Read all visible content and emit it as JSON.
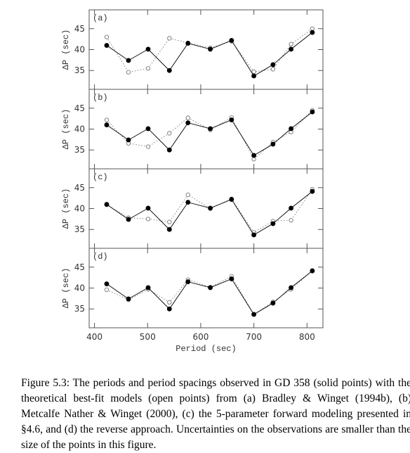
{
  "chart_data": [
    {
      "type": "line",
      "label": "(a)",
      "ylabel": "ΔP (sec)",
      "x": [
        423,
        464,
        501,
        541,
        576,
        618,
        658,
        700,
        736,
        770,
        810
      ],
      "xlim": [
        390,
        830
      ],
      "ylim": [
        30.5,
        49.5
      ],
      "yticks": [
        35,
        40,
        45
      ],
      "series": [
        {
          "color": "#000000",
          "marker": "filled",
          "linestyle": "solid",
          "values": [
            41.0,
            37.4,
            40.1,
            35.0,
            41.5,
            40.1,
            42.2,
            33.7,
            36.4,
            40.1,
            44.1
          ]
        },
        {
          "color": "#777777",
          "marker": "open",
          "linestyle": "dotted",
          "values": [
            43.0,
            34.6,
            35.5,
            42.7,
            41.6,
            40.4,
            42.0,
            34.7,
            35.3,
            41.3,
            45.0
          ]
        }
      ]
    },
    {
      "type": "line",
      "label": "(b)",
      "ylabel": "ΔP (sec)",
      "x": [
        423,
        464,
        501,
        541,
        576,
        618,
        658,
        700,
        736,
        770,
        810
      ],
      "xlim": [
        390,
        830
      ],
      "ylim": [
        30.5,
        49.5
      ],
      "yticks": [
        35,
        40,
        45
      ],
      "series": [
        {
          "color": "#000000",
          "marker": "filled",
          "linestyle": "solid",
          "values": [
            41.0,
            37.4,
            40.1,
            35.0,
            41.5,
            40.1,
            42.2,
            33.7,
            36.4,
            40.1,
            44.1
          ]
        },
        {
          "color": "#777777",
          "marker": "open",
          "linestyle": "dotted",
          "values": [
            42.2,
            36.6,
            35.8,
            39.0,
            42.7,
            39.8,
            42.8,
            32.8,
            36.9,
            39.3,
            44.5
          ]
        }
      ]
    },
    {
      "type": "line",
      "label": "(c)",
      "ylabel": "ΔP (sec)",
      "x": [
        423,
        464,
        501,
        541,
        576,
        618,
        658,
        700,
        736,
        770,
        810
      ],
      "xlim": [
        390,
        830
      ],
      "ylim": [
        30.5,
        49.5
      ],
      "yticks": [
        35,
        40,
        45
      ],
      "series": [
        {
          "color": "#000000",
          "marker": "filled",
          "linestyle": "solid",
          "values": [
            41.0,
            37.4,
            40.1,
            35.0,
            41.5,
            40.1,
            42.2,
            33.7,
            36.4,
            40.1,
            44.1
          ]
        },
        {
          "color": "#777777",
          "marker": "open",
          "linestyle": "dotted",
          "values": [
            40.9,
            37.8,
            37.5,
            36.8,
            43.3,
            40.0,
            42.3,
            34.3,
            37.0,
            37.2,
            44.6
          ]
        }
      ]
    },
    {
      "type": "line",
      "label": "(d)",
      "ylabel": "ΔP (sec)",
      "xlabel": "Period (sec)",
      "x": [
        423,
        464,
        501,
        541,
        576,
        618,
        658,
        700,
        736,
        770,
        810
      ],
      "xlim": [
        390,
        830
      ],
      "xticks": [
        400,
        500,
        600,
        700,
        800
      ],
      "ylim": [
        30.5,
        49.5
      ],
      "yticks": [
        35,
        40,
        45
      ],
      "series": [
        {
          "color": "#000000",
          "marker": "filled",
          "linestyle": "solid",
          "values": [
            41.0,
            37.4,
            40.1,
            35.0,
            41.5,
            40.1,
            42.2,
            33.7,
            36.4,
            40.1,
            44.1
          ]
        },
        {
          "color": "#777777",
          "marker": "open",
          "linestyle": "dotted",
          "values": [
            39.6,
            37.2,
            39.7,
            36.6,
            42.0,
            40.2,
            42.8,
            33.7,
            36.7,
            39.7,
            44.2
          ]
        }
      ]
    }
  ],
  "caption": "Figure 5.3: The periods and period spacings observed in GD 358 (solid points) with the theoretical best-fit models (open points) from (a) Bradley & Winget (1994b), (b) Metcalfe Nather & Winget (2000), (c) the 5-parameter forward modeling presented in §4.6, and (d) the reverse approach. Uncertainties on the observations are smaller than the size of the points in this figure."
}
